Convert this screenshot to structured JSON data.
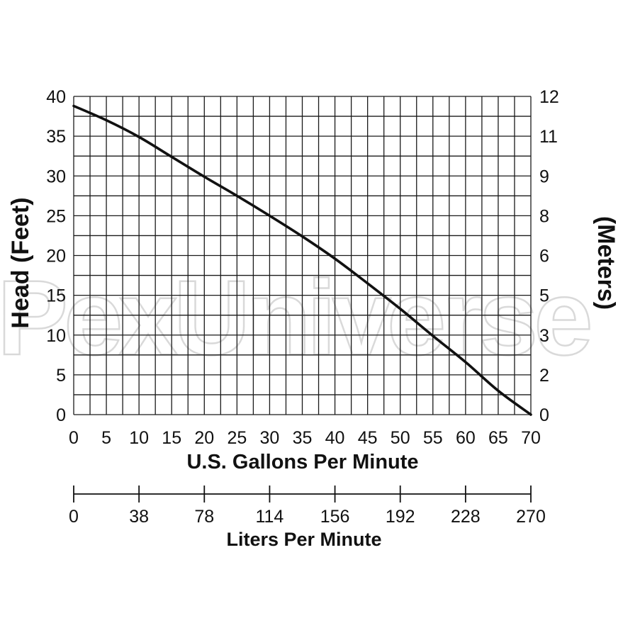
{
  "chart_data": {
    "type": "line",
    "xlabel": "U.S. Gallons Per Minute",
    "ylabel": "Head (Feet)",
    "y2label": "(Meters)",
    "x2label": "Liters Per Minute",
    "xlim": [
      0,
      70
    ],
    "ylim": [
      0,
      40
    ],
    "grid": true,
    "x_ticks": [
      "0",
      "5",
      "10",
      "15",
      "20",
      "25",
      "30",
      "35",
      "40",
      "45",
      "50",
      "55",
      "60",
      "65",
      "70"
    ],
    "y_ticks": [
      "0",
      "5",
      "10",
      "15",
      "20",
      "25",
      "30",
      "35",
      "40"
    ],
    "y2_ticks": [
      {
        "feet": 0,
        "label": "0"
      },
      {
        "feet": 5,
        "label": "2"
      },
      {
        "feet": 10,
        "label": "3"
      },
      {
        "feet": 15,
        "label": "5"
      },
      {
        "feet": 20,
        "label": "6"
      },
      {
        "feet": 25,
        "label": "8"
      },
      {
        "feet": 30,
        "label": "9"
      },
      {
        "feet": 35,
        "label": "11"
      },
      {
        "feet": 40,
        "label": "12"
      }
    ],
    "x2_ticks": [
      {
        "gpm": 0,
        "label": "0"
      },
      {
        "gpm": 10,
        "label": "38"
      },
      {
        "gpm": 20,
        "label": "78"
      },
      {
        "gpm": 30,
        "label": "114"
      },
      {
        "gpm": 40,
        "label": "156"
      },
      {
        "gpm": 50,
        "label": "192"
      },
      {
        "gpm": 60,
        "label": "228"
      },
      {
        "gpm": 70,
        "label": "270"
      }
    ],
    "series": [
      {
        "x": [
          0,
          5,
          10,
          15,
          20,
          25,
          30,
          35,
          40,
          45,
          50,
          55,
          60,
          65,
          70
        ],
        "y": [
          38.8,
          37.0,
          34.9,
          32.4,
          29.9,
          27.5,
          25.0,
          22.4,
          19.6,
          16.5,
          13.3,
          9.9,
          6.6,
          3.0,
          0
        ]
      }
    ]
  },
  "watermark": "PexUniverse"
}
